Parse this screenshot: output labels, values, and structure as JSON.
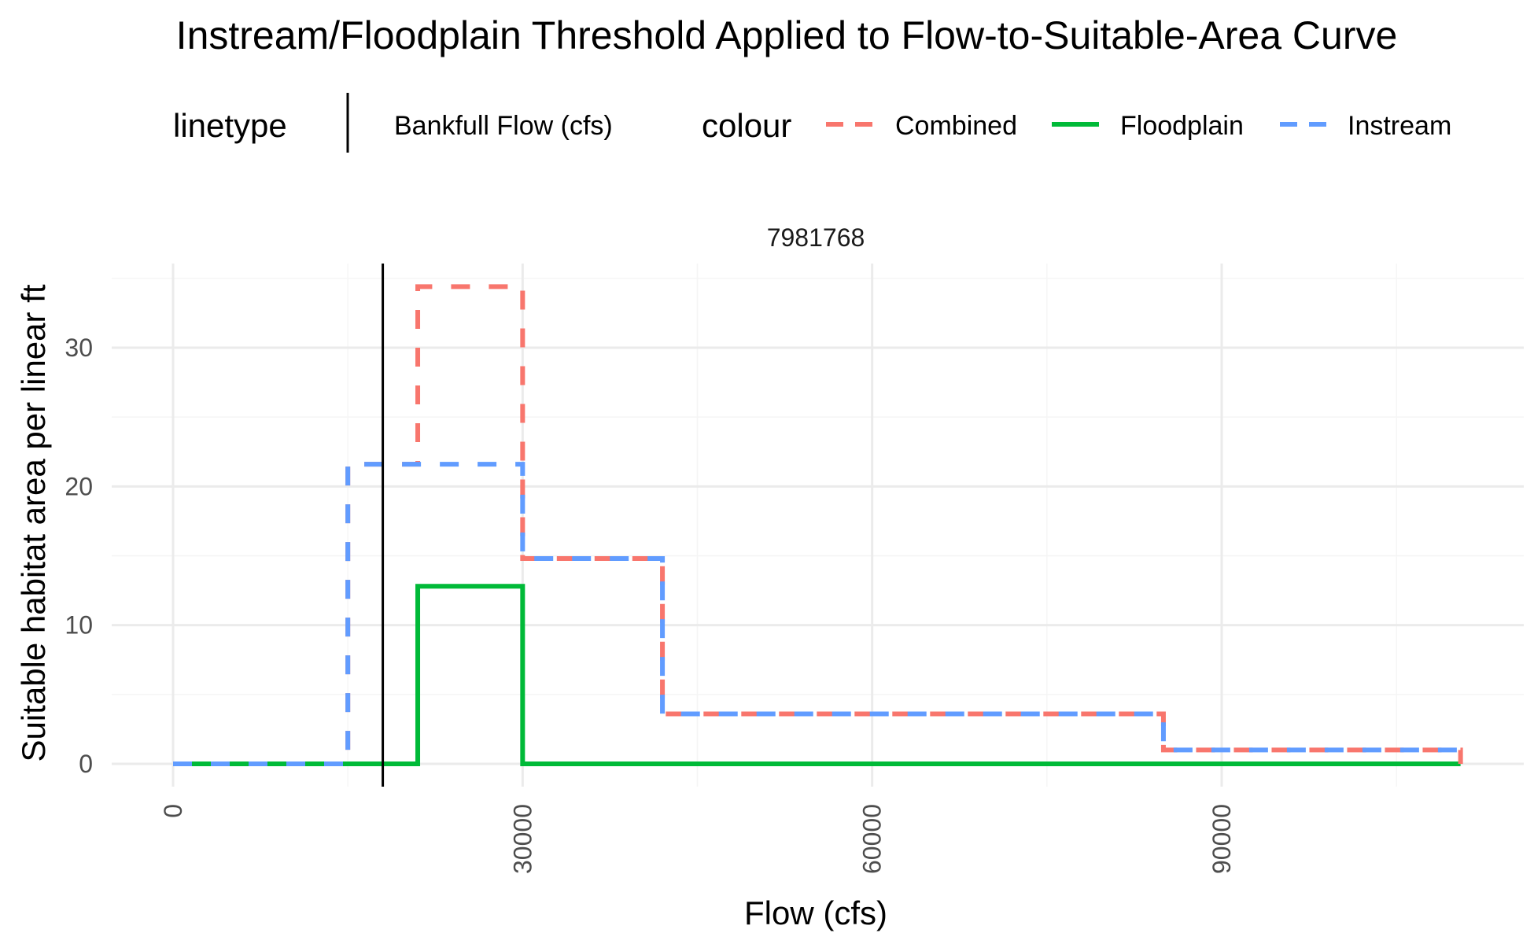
{
  "chart_data": {
    "type": "line",
    "title": "Instream/Floodplain Threshold Applied to Flow-to-Suitable-Area Curve",
    "facet_label": "7981768",
    "xlabel": "Flow (cfs)",
    "ylabel": "Suitable habitat area per linear ft",
    "xlim": [
      -3000,
      110000
    ],
    "ylim": [
      -1.5,
      36
    ],
    "x_ticks": [
      0,
      30000,
      60000,
      90000
    ],
    "x_tick_labels": [
      "0",
      "30000",
      "60000",
      "90000"
    ],
    "y_ticks": [
      0,
      10,
      20,
      30
    ],
    "y_tick_labels": [
      "0",
      "10",
      "20",
      "30"
    ],
    "grid": true,
    "legend": {
      "placement": "top",
      "linetype_title": "linetype",
      "linetype_entries": [
        {
          "label": "Bankfull Flow (cfs)"
        }
      ],
      "colour_title": "colour",
      "colour_entries": [
        {
          "label": "Combined",
          "color": "#F8766D",
          "dash": "dashed"
        },
        {
          "label": "Floodplain",
          "color": "#00BA38",
          "dash": "solid"
        },
        {
          "label": "Instream",
          "color": "#619CFF",
          "dash": "dashed"
        }
      ]
    },
    "bankfull_flow": 18000,
    "series": [
      {
        "name": "Floodplain",
        "color": "#00BA38",
        "dash": "solid",
        "x": [
          0,
          15000,
          21000,
          30000,
          42000,
          85000,
          110500
        ],
        "y": [
          0,
          0,
          12.8,
          0,
          0,
          0,
          0
        ]
      },
      {
        "name": "Combined",
        "color": "#F8766D",
        "dash": "dashed",
        "x": [
          0,
          15000,
          21000,
          30000,
          42000,
          85000,
          110500
        ],
        "y": [
          0,
          21.6,
          34.4,
          14.8,
          3.6,
          1.0,
          0
        ]
      },
      {
        "name": "Instream",
        "color": "#619CFF",
        "dash": "dashed",
        "x": [
          0,
          15000,
          21000,
          30000,
          42000,
          85000,
          110500
        ],
        "y": [
          0,
          21.6,
          21.6,
          14.8,
          3.6,
          1.0,
          1.0
        ]
      }
    ]
  }
}
